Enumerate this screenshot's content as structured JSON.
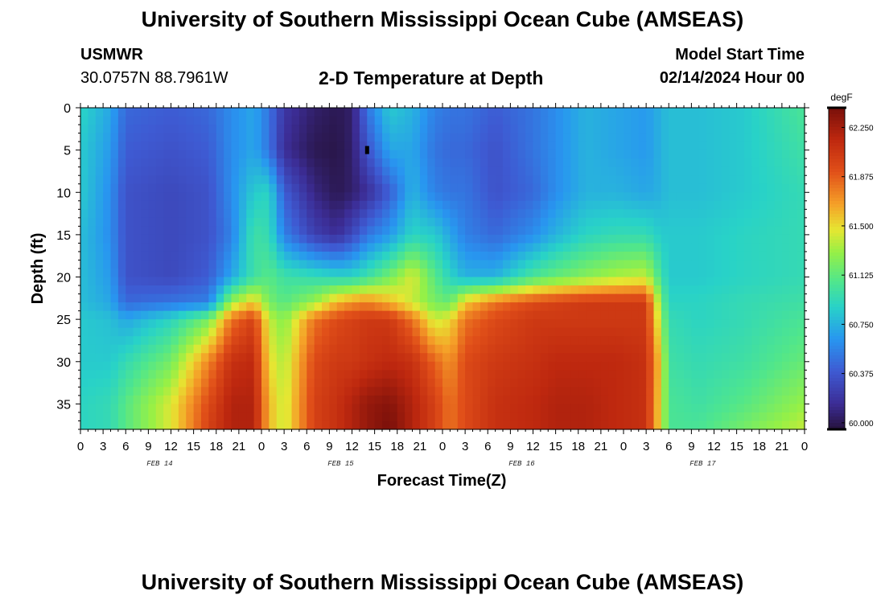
{
  "header": {
    "title": "University of Southern Mississippi Ocean Cube (AMSEAS)",
    "station": "USMWR",
    "coords": "30.0757N  88.7961W",
    "subtitle": "2-D Temperature at Depth",
    "model_start_label": "Model Start Time",
    "model_start_value": "02/14/2024 Hour 00"
  },
  "footer": {
    "title": "University of Southern Mississippi Ocean Cube (AMSEAS)"
  },
  "chart_data": {
    "type": "heatmap",
    "title": "2-D Temperature at Depth",
    "xlabel": "Forecast Time(Z)",
    "ylabel": "Depth (ft)",
    "x_range_hours": [
      0,
      96
    ],
    "ylim": [
      0,
      38
    ],
    "x_tick_step_hours": 3,
    "x_tick_labels": [
      "0",
      "3",
      "6",
      "9",
      "12",
      "15",
      "18",
      "21",
      "0",
      "3",
      "6",
      "9",
      "12",
      "15",
      "18",
      "21",
      "0",
      "3",
      "6",
      "9",
      "12",
      "15",
      "18",
      "21",
      "0",
      "3",
      "6",
      "9",
      "12",
      "15",
      "18",
      "21",
      "0"
    ],
    "date_labels": [
      {
        "text": "FEB 14",
        "hour": 10.5
      },
      {
        "text": "FEB 15",
        "hour": 34.5
      },
      {
        "text": "FEB 16",
        "hour": 58.5
      },
      {
        "text": "FEB 17",
        "hour": 82.5
      }
    ],
    "y_ticks": [
      0,
      5,
      10,
      15,
      20,
      25,
      30,
      35
    ],
    "colorbar": {
      "units": "degF",
      "vmin": 59.95,
      "vmax": 62.4,
      "tick_values": [
        60.0,
        60.375,
        60.75,
        61.125,
        61.5,
        61.875,
        62.25
      ],
      "tick_labels": [
        "60.000",
        "60.375",
        "60.750",
        "61.125",
        "61.500",
        "61.875",
        "62.250"
      ]
    },
    "marker": {
      "hour": 38,
      "depth_ft": 5
    },
    "temperature_grid": {
      "hours": [
        0,
        4,
        6,
        12,
        17,
        20,
        23,
        25,
        27,
        31,
        34,
        36,
        38,
        41,
        44,
        47,
        49,
        51,
        55,
        60,
        63,
        67,
        71,
        75,
        77,
        78,
        82,
        88,
        96
      ],
      "depths_ft": [
        0,
        5,
        10,
        15,
        20,
        23,
        25,
        30,
        35,
        38
      ],
      "degF": [
        [
          60.9,
          60.7,
          60.45,
          60.4,
          60.45,
          60.6,
          60.7,
          60.5,
          60.2,
          60.05,
          60.0,
          60.05,
          60.5,
          60.85,
          60.75,
          60.55,
          60.5,
          60.5,
          60.4,
          60.5,
          60.6,
          60.75,
          60.7,
          60.65,
          60.75,
          60.8,
          60.8,
          60.85,
          61.05
        ],
        [
          60.85,
          60.65,
          60.4,
          60.35,
          60.4,
          60.6,
          60.7,
          60.5,
          60.15,
          60.0,
          59.98,
          60.05,
          60.35,
          60.7,
          60.7,
          60.5,
          60.45,
          60.45,
          60.35,
          60.5,
          60.6,
          60.75,
          60.7,
          60.65,
          60.75,
          60.8,
          60.8,
          60.85,
          61.0
        ],
        [
          60.85,
          60.6,
          60.35,
          60.3,
          60.35,
          60.6,
          60.85,
          60.9,
          60.4,
          60.1,
          60.0,
          60.05,
          60.15,
          60.4,
          60.75,
          60.55,
          60.5,
          60.5,
          60.35,
          60.45,
          60.6,
          60.75,
          60.75,
          60.7,
          60.75,
          60.8,
          60.8,
          60.85,
          60.95
        ],
        [
          60.8,
          60.6,
          60.35,
          60.3,
          60.35,
          60.55,
          61.0,
          60.95,
          60.55,
          60.25,
          60.15,
          60.3,
          60.5,
          60.65,
          60.9,
          60.85,
          60.7,
          60.55,
          60.45,
          60.6,
          60.75,
          60.9,
          60.95,
          60.95,
          60.85,
          60.85,
          60.85,
          60.9,
          60.95
        ],
        [
          60.8,
          60.65,
          60.35,
          60.3,
          60.4,
          60.7,
          61.0,
          61.1,
          61.0,
          60.95,
          60.9,
          60.9,
          61.0,
          61.2,
          61.45,
          61.1,
          60.9,
          60.75,
          60.75,
          61.05,
          61.15,
          61.25,
          61.35,
          61.4,
          61.0,
          60.85,
          60.85,
          60.9,
          60.95
        ],
        [
          60.8,
          60.7,
          60.45,
          60.5,
          60.55,
          61.3,
          61.55,
          61.2,
          61.1,
          61.3,
          61.6,
          61.7,
          61.75,
          61.6,
          61.4,
          61.2,
          61.15,
          61.55,
          61.8,
          61.95,
          62.0,
          62.05,
          62.05,
          62.05,
          61.2,
          60.9,
          60.9,
          60.95,
          61.0
        ],
        [
          60.85,
          60.8,
          60.7,
          60.9,
          61.2,
          61.8,
          62.0,
          61.4,
          61.25,
          61.8,
          61.95,
          62.0,
          62.05,
          62.05,
          61.8,
          61.4,
          61.5,
          61.8,
          61.95,
          62.05,
          62.05,
          62.05,
          62.05,
          62.05,
          61.3,
          60.95,
          60.9,
          60.95,
          61.05
        ],
        [
          60.85,
          60.85,
          60.95,
          61.2,
          61.75,
          62.1,
          62.15,
          61.5,
          61.35,
          61.95,
          62.05,
          62.05,
          62.1,
          62.15,
          62.1,
          61.85,
          61.7,
          61.95,
          62.05,
          62.1,
          62.15,
          62.15,
          62.15,
          62.1,
          61.5,
          61.0,
          60.95,
          61.0,
          61.15
        ],
        [
          60.9,
          60.95,
          61.1,
          61.45,
          61.95,
          62.2,
          62.2,
          61.6,
          61.4,
          62.0,
          62.1,
          62.2,
          62.3,
          62.35,
          62.2,
          62.0,
          61.8,
          61.95,
          62.1,
          62.15,
          62.2,
          62.2,
          62.15,
          62.1,
          61.45,
          61.05,
          61.0,
          61.1,
          61.3
        ],
        [
          60.9,
          60.95,
          61.1,
          61.45,
          62.0,
          62.2,
          62.2,
          61.6,
          61.4,
          62.0,
          62.1,
          62.2,
          62.3,
          62.4,
          62.2,
          62.0,
          61.8,
          61.95,
          62.1,
          62.15,
          62.2,
          62.2,
          62.15,
          62.1,
          61.45,
          61.05,
          61.05,
          61.2,
          61.4
        ]
      ]
    }
  }
}
